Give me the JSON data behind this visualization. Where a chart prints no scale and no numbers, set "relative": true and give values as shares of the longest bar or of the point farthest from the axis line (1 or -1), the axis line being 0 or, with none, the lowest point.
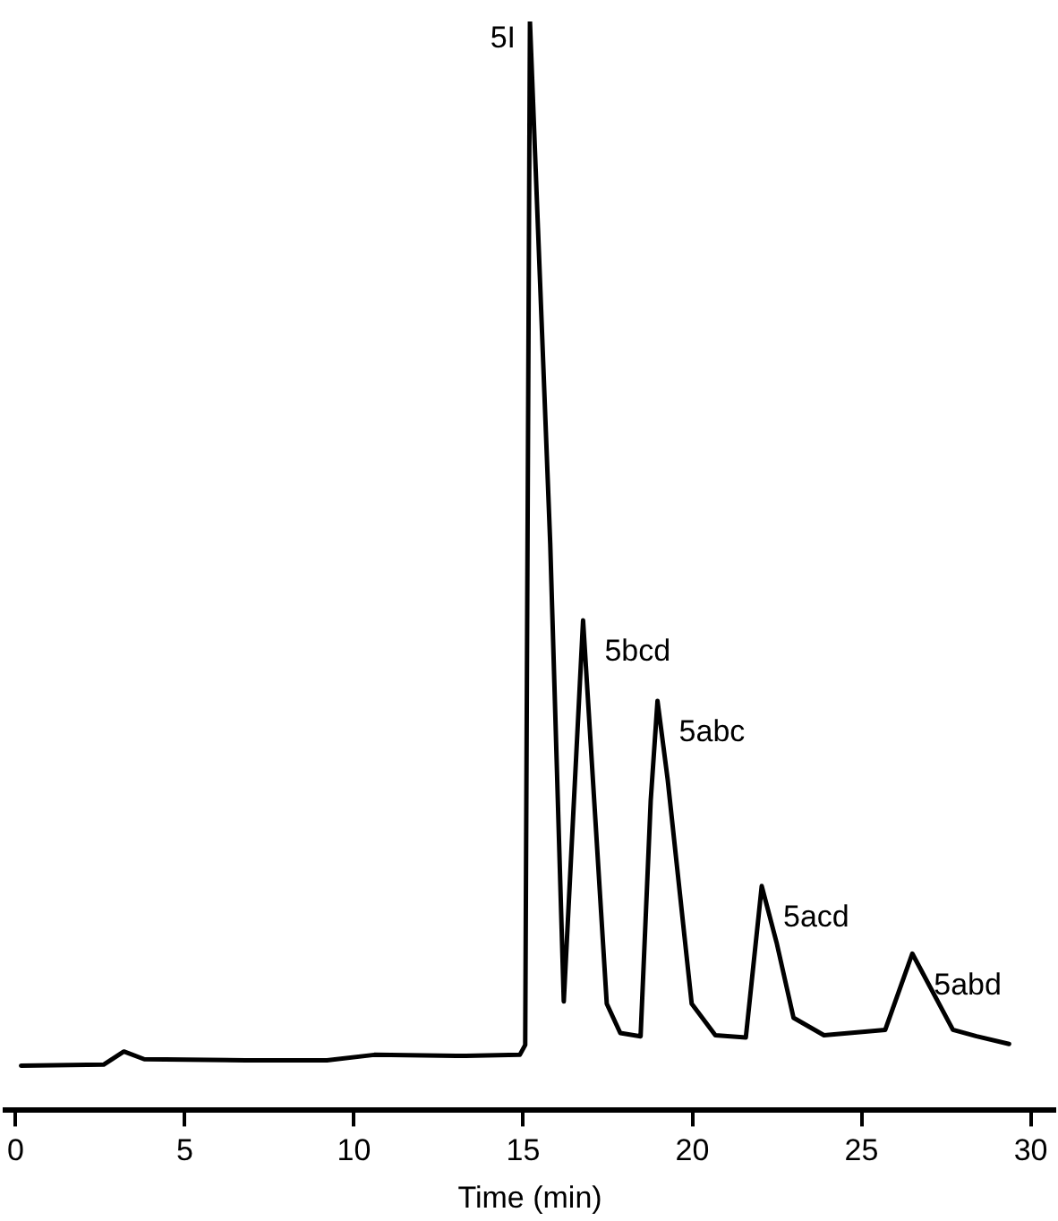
{
  "chart_data": {
    "type": "line",
    "relative": true,
    "xlabel": "Time (min)",
    "xlim": [
      -0.3,
      30.7
    ],
    "xticks": [
      0,
      5,
      10,
      15,
      20,
      25,
      30
    ],
    "grid": false,
    "legend": false,
    "marker": "none",
    "line_style": "solid",
    "series": [
      {
        "color": "#000000",
        "x": [
          0.16,
          2.6,
          3.2,
          3.8,
          6.8,
          9.2,
          10.6,
          13.3,
          14.9,
          15.06,
          15.2,
          15.8,
          16.2,
          16.77,
          17.47,
          17.87,
          18.47,
          18.77,
          18.97,
          19.27,
          19.98,
          20.68,
          21.58,
          22.05,
          22.49,
          22.99,
          23.89,
          25.7,
          26.5,
          27.7,
          28.4,
          29.36
        ],
        "values": [
          0.041,
          0.042,
          0.054,
          0.047,
          0.046,
          0.046,
          0.051,
          0.05,
          0.051,
          0.06,
          1.0,
          0.52,
          0.1,
          0.45,
          0.098,
          0.071,
          0.068,
          0.285,
          0.376,
          0.304,
          0.098,
          0.069,
          0.067,
          0.206,
          0.154,
          0.085,
          0.069,
          0.074,
          0.144,
          0.074,
          0.068,
          0.061
        ]
      }
    ],
    "annotations": [
      {
        "text": "5I",
        "x": 15.2,
        "y": 1.0
      },
      {
        "text": "5bcd",
        "x": 16.77,
        "y": 0.45
      },
      {
        "text": "5abc",
        "x": 18.97,
        "y": 0.376
      },
      {
        "text": "5acd",
        "x": 22.05,
        "y": 0.206
      },
      {
        "text": "5abd",
        "x": 26.5,
        "y": 0.144
      }
    ]
  }
}
